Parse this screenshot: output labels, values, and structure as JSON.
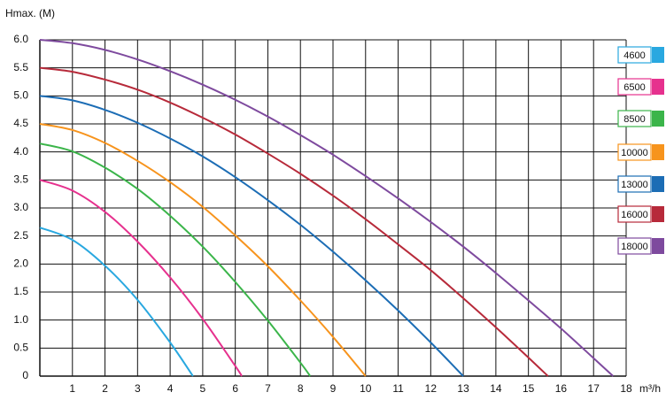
{
  "chart_data": {
    "type": "line",
    "ylabel": "Hmax. (M)",
    "xlabel": "m³/h",
    "xlim": [
      0,
      18
    ],
    "xticks": [
      1,
      2,
      3,
      4,
      5,
      6,
      7,
      8,
      9,
      10,
      11,
      12,
      13,
      14,
      15,
      16,
      17,
      18
    ],
    "ylim": [
      0,
      6
    ],
    "yticks": [
      0,
      0.5,
      {
        "value": 1,
        "label": "1.0"
      },
      1.5,
      {
        "value": 2,
        "label": "2.0"
      },
      2.5,
      {
        "value": 3,
        "label": "3.0"
      },
      3.5,
      {
        "value": 4,
        "label": "4.0"
      },
      4.5,
      {
        "value": 5,
        "label": "5.0"
      },
      5.5,
      {
        "value": 6,
        "label": "6.0"
      }
    ],
    "grid": true,
    "legend": "right",
    "series": [
      {
        "name": "4600",
        "color": "#29a8e0",
        "x": [
          0,
          1,
          2,
          3,
          4,
          4.7
        ],
        "values": [
          2.65,
          2.43,
          1.97,
          1.36,
          0.6,
          0
        ]
      },
      {
        "name": "6500",
        "color": "#e6318e",
        "x": [
          0,
          1,
          2,
          3,
          4,
          5,
          6,
          6.2
        ],
        "values": [
          3.5,
          3.31,
          2.93,
          2.4,
          1.76,
          1.02,
          0.18,
          0
        ]
      },
      {
        "name": "8500",
        "color": "#3bb54a",
        "x": [
          0,
          1,
          2,
          3,
          4,
          5,
          6,
          7,
          8,
          8.3
        ],
        "values": [
          4.15,
          4.01,
          3.72,
          3.34,
          2.86,
          2.31,
          1.68,
          0.99,
          0.24,
          0
        ]
      },
      {
        "name": "10000",
        "color": "#f7941d",
        "x": [
          0,
          1,
          2,
          3,
          4,
          5,
          6,
          7,
          8,
          9,
          10
        ],
        "values": [
          4.5,
          4.39,
          4.16,
          3.84,
          3.46,
          3.02,
          2.51,
          1.96,
          1.35,
          0.7,
          0
        ]
      },
      {
        "name": "13000",
        "color": "#1c6db5",
        "x": [
          0,
          1,
          2,
          3,
          4,
          5,
          6,
          7,
          8,
          9,
          10,
          11,
          12,
          13
        ],
        "values": [
          5,
          4.92,
          4.75,
          4.52,
          4.24,
          3.92,
          3.55,
          3.14,
          2.7,
          2.22,
          1.71,
          1.17,
          0.6,
          0
        ]
      },
      {
        "name": "16000",
        "color": "#b72a3a",
        "x": [
          0,
          1,
          2,
          3,
          4,
          5,
          6,
          7,
          8,
          9,
          10,
          11,
          12,
          13,
          14,
          15,
          15.6
        ],
        "values": [
          5.5,
          5.43,
          5.29,
          5.11,
          4.88,
          4.61,
          4.31,
          3.97,
          3.61,
          3.22,
          2.8,
          2.35,
          1.89,
          1.39,
          0.87,
          0.33,
          0
        ]
      },
      {
        "name": "18000",
        "color": "#7e4a9e",
        "x": [
          0,
          1,
          2,
          3,
          4,
          5,
          6,
          7,
          8,
          9,
          10,
          11,
          12,
          13,
          14,
          15,
          16,
          17,
          17.6
        ],
        "values": [
          6,
          5.94,
          5.82,
          5.65,
          5.44,
          5.2,
          4.93,
          4.63,
          4.3,
          3.95,
          3.57,
          3.17,
          2.75,
          2.31,
          1.84,
          1.35,
          0.85,
          0.32,
          0
        ]
      }
    ]
  }
}
